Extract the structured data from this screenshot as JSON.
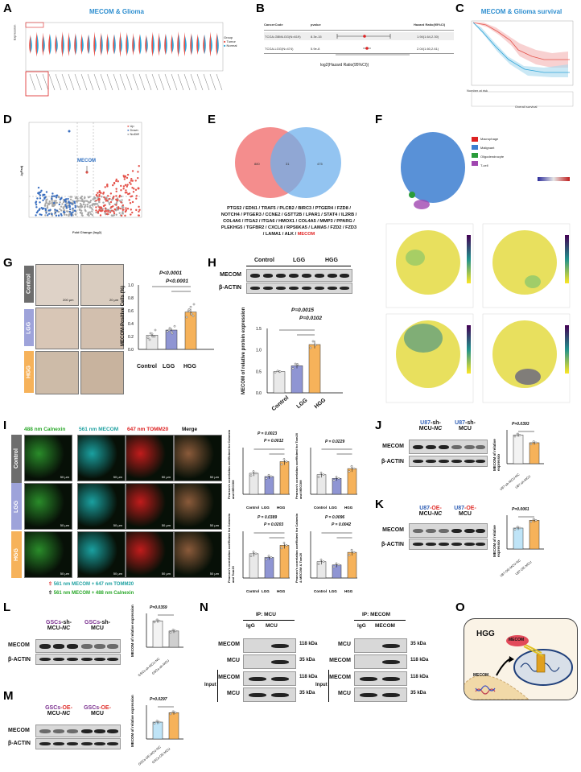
{
  "panels": {
    "A": {
      "label": "A",
      "title": "MECOM & Glioma",
      "ylabel": "Expression",
      "legend_title": "Group",
      "legend": [
        "Tumor",
        "Normal"
      ]
    },
    "B": {
      "label": "B",
      "headers": [
        "CancerCode",
        "pvalue",
        "Hazard Ratio(95%CI)"
      ],
      "rows": [
        {
          "code": "TCGA-GBMLGG(N=619)",
          "p": "8.3e-15",
          "hr": "1.94(1.64,2.30)"
        },
        {
          "code": "TCGA-LGG(N=474)",
          "p": "5.9e-8",
          "hr": "2.04(1.60,2.61)"
        }
      ],
      "xlabel": "log2(Hazard Ratio(95%CI))"
    },
    "C": {
      "label": "C",
      "title": "MECOM & Glioma survival",
      "xlabel": "Overall survival",
      "ylabel": "Survival probability",
      "risk_label": "Number at risk"
    },
    "D": {
      "label": "D",
      "xlabel": "Fold Change (log2)",
      "ylabel": "-lgPadj",
      "highlight": "MECOM",
      "legend": [
        "Up",
        "Down",
        "NoDiff"
      ]
    },
    "E": {
      "label": "E",
      "genes": [
        "PTGS2 / EDN1 / TRAF5 / PLCB2 / BIRC3 / PTGER4 / FZD8 /",
        "NOTCH4 / PTGER3 / CCNE2 / GSTT2B / LPAR1 / STAT4 / IL2RB /",
        "COL4A6 / ITGA2 / ITGA6 / HMOX1 / COL4A5 / MMP3 / PPARG /",
        "PLEKHG5 / TGFBR2 / CXCL8 / RPS6KA5 / LAMA5 / FZD2 / FZD3",
        "/ LAMA1 / ALK /"
      ],
      "highlight": "MECOM"
    },
    "F": {
      "label": "F",
      "cells": [
        "Macrophage",
        "Malignant",
        "Oligodendrocyte",
        "T-cell"
      ]
    },
    "G": {
      "label": "G",
      "groups": [
        "Control",
        "LGG",
        "HGG"
      ],
      "ylabel": "MECOM-Positive Cells (%)",
      "p1": "P<0.0001",
      "p2": "P<0.0001",
      "yticks": [
        "0.0",
        "0.2",
        "0.4",
        "0.6",
        "0.8",
        "1.0"
      ],
      "scale1": "200 μm",
      "scale2": "20 μm"
    },
    "H": {
      "label": "H",
      "groups": [
        "Control",
        "LGG",
        "HGG"
      ],
      "rows": [
        "MECOM",
        "β-ACTIN"
      ],
      "ylabel": "MECOM of relative protein expression",
      "p1": "P=0.0015",
      "p2": "P=0.0102",
      "yticks": [
        "0.0",
        "0.5",
        "1.0",
        "1.5"
      ]
    },
    "I": {
      "label": "I",
      "channels": {
        "c1a": "488 nm",
        "c1b": "Calnexin",
        "c2a": "561 nm",
        "c2b": "MECOM",
        "c3a": "647 nm",
        "c3b": "TOMM20",
        "c4": "Merge"
      },
      "groups": [
        "Control",
        "LGG",
        "HGG"
      ],
      "scale": "50 μm",
      "legend1": "561 nm  MECOM  +  647 nm  TOMM20",
      "legend2": "561 nm  MECOM  +  488 nm  Calnexin",
      "charts": [
        {
          "ylabel": "Pearson's correlation coefficient for Calnexin and MECOM",
          "p1": "P = 0.0023",
          "p2": "P = 0.0012"
        },
        {
          "ylabel": "Pearson's correlation coefficient for Tom20 and MECOM",
          "p1": "P = 0.0229",
          "p2": ""
        },
        {
          "ylabel": "Pearson's correlation coefficient for Calnexin and Tom20",
          "p1": "P = 0.0389",
          "p2": "P = 0.0203"
        },
        {
          "ylabel": "Pearson's correlation coefficient for Calnexin & MECOM & Tom20",
          "p1": "P = 0.0096",
          "p2": "P = 0.0042"
        }
      ],
      "xcats": [
        "Control",
        "LGG",
        "HGG"
      ]
    },
    "J": {
      "label": "J",
      "g1a": "U87",
      "g1b": "-sh-",
      "g1c": "MCU-",
      "g1d": "NC",
      "g2a": "U87",
      "g2b": "-sh-",
      "g2c": "MCU",
      "rows": [
        "MECOM",
        "β-ACTIN"
      ],
      "p": "P=0.0393",
      "ylabel": "MECOM of relative expressio",
      "xcats": [
        "U87-sh-MCU-NC",
        "U87-sh-MCU"
      ]
    },
    "K": {
      "label": "K",
      "g1a": "U87",
      "g1b": "-OE-",
      "g1c": "MCU-",
      "g1d": "NC",
      "g2a": "U87",
      "g2b": "-OE-",
      "g2c": "MCU",
      "rows": [
        "MECOM",
        "β-ACTIN"
      ],
      "p": "P=0.0061",
      "ylabel": "MECOM of relative expressio",
      "xcats": [
        "U87-OE-MCU-NC",
        "U87-OE-MCU"
      ]
    },
    "L": {
      "label": "L",
      "g1a": "GSCs",
      "g1b": "-sh-",
      "g1c": "MCU-",
      "g1d": "NC",
      "g2a": "GSCs",
      "g2b": "-sh-",
      "g2c": "MCU",
      "rows": [
        "MECOM",
        "β-ACTIN"
      ],
      "p": "P=0.0359",
      "ylabel": "MECOM of relative expression",
      "xcats": [
        "GSCs-sh-MCU-NC",
        "GSCs-sh-MCU"
      ]
    },
    "M": {
      "label": "M",
      "g1a": "GSCs",
      "g1b": "-OE-",
      "g1c": "MCU-",
      "g1d": "NC",
      "g2a": "GSCs",
      "g2b": "-OE-",
      "g2c": "MCU",
      "rows": [
        "MECOM",
        "β-ACTIN"
      ],
      "p": "P=0.0297",
      "ylabel": "MECOM of relative expression",
      "xcats": [
        "GSCs-OE-MCU-NC",
        "GSCs-OE-MCU"
      ]
    },
    "N": {
      "label": "N",
      "left": {
        "ip": "IP: MCU",
        "lanes": [
          "IgG",
          "MCU"
        ],
        "rows": [
          "MECOM",
          "MCU",
          "MECOM",
          "MCU"
        ],
        "kda": [
          "118 kDa",
          "35 kDa",
          "118 kDa",
          "35 kDa"
        ]
      },
      "right": {
        "ip": "IP: MECOM",
        "lanes": [
          "IgG",
          "MECOM"
        ],
        "rows": [
          "MCU",
          "MECOM",
          "MECOM",
          "MCU"
        ],
        "kda": [
          "35 kDa",
          "118 kDa",
          "118 kDa",
          "35 kDa"
        ]
      },
      "input": "Input"
    },
    "O": {
      "label": "O",
      "hgg": "HGG",
      "mecom1": "MECOM",
      "mecom2": "MECOM"
    }
  },
  "colors": {
    "tumor": "#e5534b",
    "normal": "#2fa4d8",
    "control": "#e9e9e9",
    "lgg": "#8f95d3",
    "hgg": "#f6b25a",
    "title_blue": "#2f8fd0"
  }
}
